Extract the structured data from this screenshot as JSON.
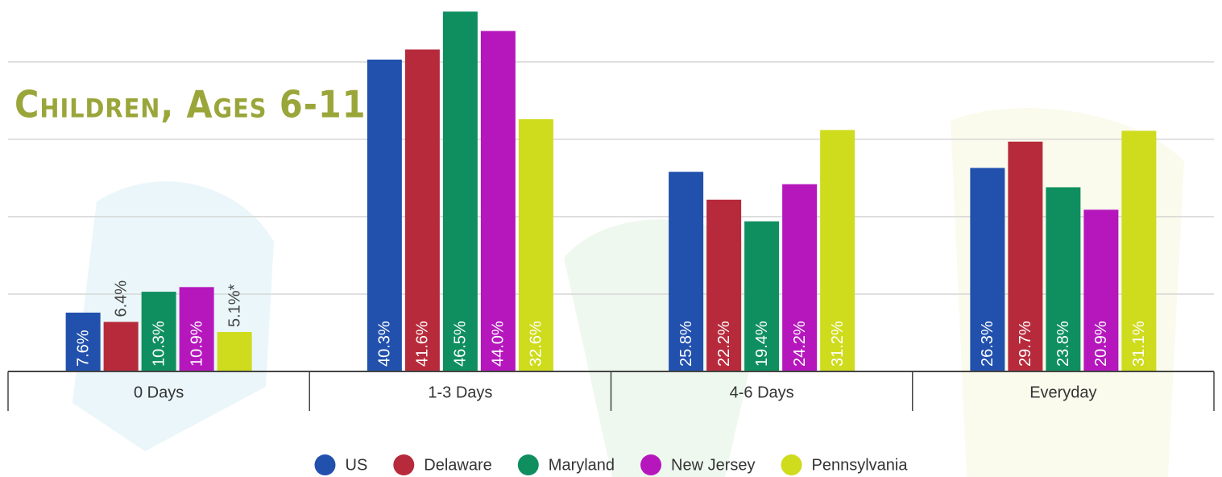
{
  "chart_data": {
    "type": "bar",
    "title": "Children, Ages 6-11",
    "categories": [
      "0 Days",
      "1-3 Days",
      "4-6 Days",
      "Everyday"
    ],
    "ylim": [
      0,
      48
    ],
    "yticks": [
      0,
      10,
      20,
      30,
      40
    ],
    "grid": true,
    "legend": "bottom",
    "series": [
      {
        "name": "US",
        "color": "#2150ad",
        "values": [
          7.6,
          40.3,
          25.8,
          26.3
        ],
        "value_labels": [
          "7.6%",
          "40.3%",
          "25.8%",
          "26.3%"
        ]
      },
      {
        "name": "Delaware",
        "color": "#b72a3b",
        "values": [
          6.4,
          41.6,
          22.2,
          29.7
        ],
        "value_labels": [
          "6.4%",
          "41.6%",
          "22.2%",
          "29.7%"
        ]
      },
      {
        "name": "Maryland",
        "color": "#0f8f5f",
        "values": [
          10.3,
          46.5,
          19.4,
          23.8
        ],
        "value_labels": [
          "10.3%",
          "46.5%",
          "19.4%",
          "23.8%"
        ]
      },
      {
        "name": "New Jersey",
        "color": "#b517bd",
        "values": [
          10.9,
          44.0,
          24.2,
          20.9
        ],
        "value_labels": [
          "10.9%",
          "44.0%",
          "24.2%",
          "20.9%"
        ]
      },
      {
        "name": "Pennsylvania",
        "color": "#cfdb1d",
        "values": [
          5.1,
          32.6,
          31.2,
          31.1
        ],
        "value_labels": [
          "5.1%*",
          "32.6%",
          "31.2%",
          "31.1%"
        ]
      }
    ]
  }
}
